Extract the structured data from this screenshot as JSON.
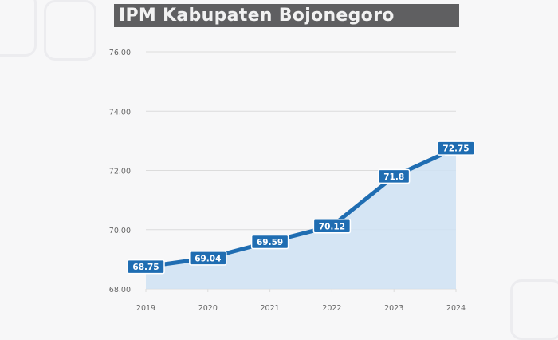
{
  "title": "IPM Kabupaten Bojonegoro",
  "colors": {
    "line": "#1f6db2",
    "fill": "#cfe2f3",
    "label_bg": "#1f6db2",
    "label_text": "#ffffff",
    "grid": "#dcdcdc",
    "axis_text": "#666666",
    "title_bg": "#5f5f61",
    "title_text": "#f2f2f2"
  },
  "chart_data": {
    "type": "area",
    "title": "IPM Kabupaten Bojonegoro",
    "xlabel": "",
    "ylabel": "",
    "categories": [
      "2019",
      "2020",
      "2021",
      "2022",
      "2023",
      "2024"
    ],
    "values": [
      68.75,
      69.04,
      69.59,
      70.12,
      71.8,
      72.75
    ],
    "data_labels": [
      "68.75",
      "69.04",
      "69.59",
      "70.12",
      "71.8",
      "72.75"
    ],
    "y_ticks": [
      "68.00",
      "70.00",
      "72.00",
      "74.00",
      "76.00"
    ],
    "ylim": [
      68,
      76
    ],
    "grid": true,
    "legend": null
  }
}
